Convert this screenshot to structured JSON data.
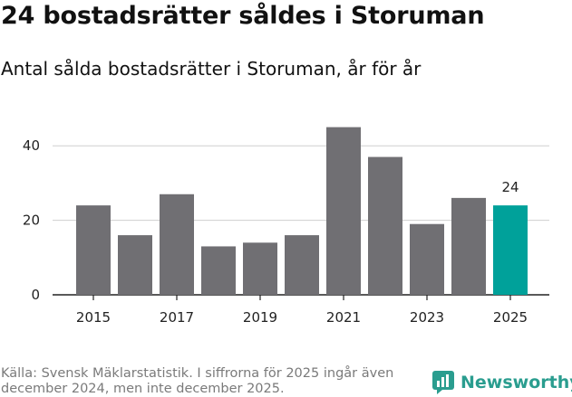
{
  "header": {
    "title": "24 bostadsrätter såldes i Storuman",
    "subtitle": "Antal sålda bostadsrätter i Storuman, år för år"
  },
  "footer": {
    "source": "Källa: Svensk Mäklarstatistik. I siffrorna för 2025 ingår även december 2024, men inte december 2025.",
    "brand": "Newsworthy"
  },
  "colors": {
    "bar": "#706f73",
    "highlight": "#00a19a",
    "brand": "#2a9d8f"
  },
  "chart_data": {
    "type": "bar",
    "title": "24 bostadsrätter såldes i Storuman",
    "subtitle": "Antal sålda bostadsrätter i Storuman, år för år",
    "xlabel": "",
    "ylabel": "",
    "categories": [
      "2015",
      "2016",
      "2017",
      "2018",
      "2019",
      "2020",
      "2021",
      "2022",
      "2023",
      "2024",
      "2025"
    ],
    "values": [
      24,
      16,
      27,
      13,
      14,
      16,
      45,
      37,
      19,
      26,
      24
    ],
    "x_tick_labels": [
      "2015",
      "2017",
      "2019",
      "2021",
      "2023",
      "2025"
    ],
    "y_ticks": [
      0,
      20,
      40
    ],
    "ylim": [
      0,
      50
    ],
    "grid": true,
    "highlight_index": 10,
    "data_labels": [
      {
        "index": 10,
        "text": "24"
      }
    ]
  }
}
